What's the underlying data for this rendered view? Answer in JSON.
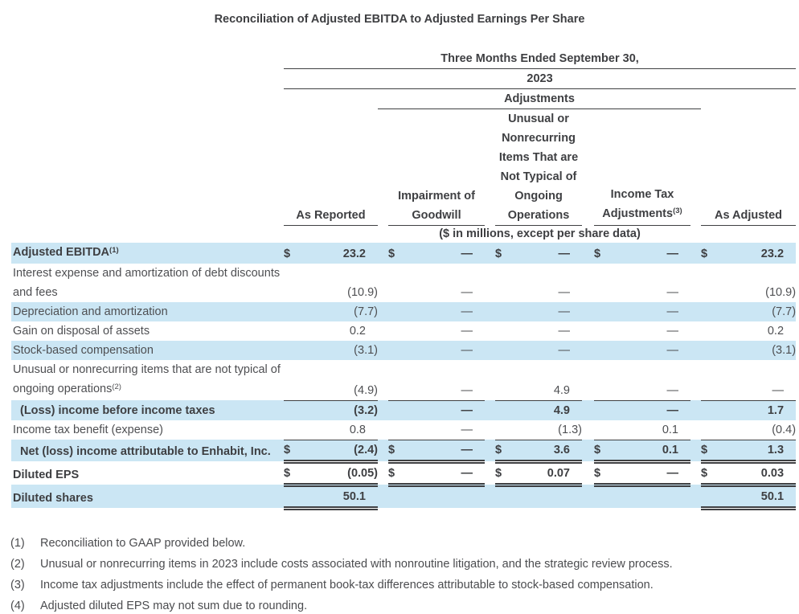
{
  "title": "Reconciliation of Adjusted EBITDA to Adjusted Earnings Per Share",
  "colors": {
    "row_highlight": "#cbe6f4",
    "text": "#3e3f42",
    "rule": "#3f4042"
  },
  "table": {
    "period_header": "Three Months Ended September 30,",
    "year_header": "2023",
    "adjustments_header": "Adjustments",
    "units_note": "($ in millions, except per share data)",
    "columns": [
      {
        "lines": [
          "As Reported"
        ]
      },
      {
        "lines": [
          "Impairment of",
          "Goodwill"
        ]
      },
      {
        "lines": [
          "Unusual or",
          "Nonrecurring",
          "Items That are",
          "Not Typical of",
          "Ongoing",
          "Operations"
        ]
      },
      {
        "lines": [
          "Income Tax",
          "Adjustments"
        ],
        "sup": "(3)"
      },
      {
        "lines": [
          "As Adjusted"
        ]
      }
    ],
    "rows": [
      {
        "label_lines": [
          "Adjusted EBITDA"
        ],
        "sup": "(1)",
        "bold": true,
        "shaded": true,
        "cells": [
          {
            "dollar": "$",
            "value": "23.2"
          },
          {
            "dollar": "$",
            "value": "—"
          },
          {
            "dollar": "$",
            "value": "—"
          },
          {
            "dollar": "$",
            "value": "—"
          },
          {
            "dollar": "$",
            "value": "23.2"
          }
        ]
      },
      {
        "label_lines": [
          "Interest expense and amortization of debt discounts",
          "and fees"
        ],
        "cells": [
          {
            "value": "(10.9)"
          },
          {
            "value": "—"
          },
          {
            "value": "—"
          },
          {
            "value": "—"
          },
          {
            "value": "(10.9)"
          }
        ]
      },
      {
        "label_lines": [
          "Depreciation and amortization"
        ],
        "shaded": true,
        "cells": [
          {
            "value": "(7.7)"
          },
          {
            "value": "—"
          },
          {
            "value": "—"
          },
          {
            "value": "—"
          },
          {
            "value": "(7.7)"
          }
        ]
      },
      {
        "label_lines": [
          "Gain on disposal of assets"
        ],
        "cells": [
          {
            "value": "0.2"
          },
          {
            "value": "—"
          },
          {
            "value": "—"
          },
          {
            "value": "—"
          },
          {
            "value": "0.2"
          }
        ]
      },
      {
        "label_lines": [
          "Stock-based compensation"
        ],
        "shaded": true,
        "cells": [
          {
            "value": "(3.1)"
          },
          {
            "value": "—"
          },
          {
            "value": "—"
          },
          {
            "value": "—"
          },
          {
            "value": "(3.1)"
          }
        ]
      },
      {
        "label_lines": [
          "Unusual or nonrecurring items that are not typical of",
          "ongoing operations"
        ],
        "sup": "(2)",
        "cells": [
          {
            "value": "(4.9)",
            "bb": "s"
          },
          {
            "value": "—",
            "bb": "s"
          },
          {
            "value": "4.9",
            "bb": "s"
          },
          {
            "value": "—",
            "bb": "s"
          },
          {
            "value": "—",
            "bb": "s"
          }
        ]
      },
      {
        "label_lines": [
          "(Loss) income before income taxes"
        ],
        "bold": true,
        "shaded": true,
        "indent": true,
        "cells": [
          {
            "value": "(3.2)"
          },
          {
            "value": "—"
          },
          {
            "value": "4.9"
          },
          {
            "value": "—"
          },
          {
            "value": "1.7"
          }
        ]
      },
      {
        "label_lines": [
          "Income tax benefit (expense)"
        ],
        "cells": [
          {
            "value": "0.8",
            "bb": "s"
          },
          {
            "value": "—",
            "bb": "s"
          },
          {
            "value": "(1.3)",
            "bb": "s"
          },
          {
            "value": "0.1",
            "bb": "s"
          },
          {
            "value": "(0.4)",
            "bb": "s"
          }
        ]
      },
      {
        "label_lines": [
          "Net (loss) income attributable to Enhabit, Inc."
        ],
        "bold": true,
        "shaded": true,
        "indent": true,
        "cells": [
          {
            "dollar": "$",
            "value": "(2.4)",
            "bb": "d"
          },
          {
            "dollar": "$",
            "value": "—",
            "bb": "d"
          },
          {
            "dollar": "$",
            "value": "3.6",
            "bb": "d"
          },
          {
            "dollar": "$",
            "value": "0.1",
            "bb": "d"
          },
          {
            "dollar": "$",
            "value": "1.3",
            "bb": "d"
          }
        ]
      },
      {
        "label_lines": [
          "Diluted EPS"
        ],
        "bold": true,
        "cells": [
          {
            "dollar": "$",
            "value": "(0.05)",
            "bb": "d"
          },
          {
            "dollar": "$",
            "value": "—",
            "bb": "d"
          },
          {
            "dollar": "$",
            "value": "0.07",
            "bb": "d"
          },
          {
            "dollar": "$",
            "value": "—",
            "bb": "d"
          },
          {
            "dollar": "$",
            "value": "0.03",
            "bb": "d"
          }
        ]
      },
      {
        "label_lines": [
          "Diluted shares"
        ],
        "bold": true,
        "shaded": true,
        "cells": [
          {
            "value": "50.1",
            "bb": "d"
          },
          {
            "value": ""
          },
          {
            "value": ""
          },
          {
            "value": ""
          },
          {
            "value": "50.1",
            "bb": "d"
          }
        ]
      }
    ]
  },
  "footnotes": [
    {
      "marker": "(1)",
      "text": "Reconciliation to GAAP provided below."
    },
    {
      "marker": "(2)",
      "text": "Unusual or nonrecurring items in 2023 include costs associated with nonroutine litigation, and the strategic review process."
    },
    {
      "marker": "(3)",
      "text": "Income tax adjustments include the effect of permanent book-tax differences attributable to stock-based compensation."
    },
    {
      "marker": "(4)",
      "text": "Adjusted diluted EPS may not sum due to rounding."
    }
  ]
}
